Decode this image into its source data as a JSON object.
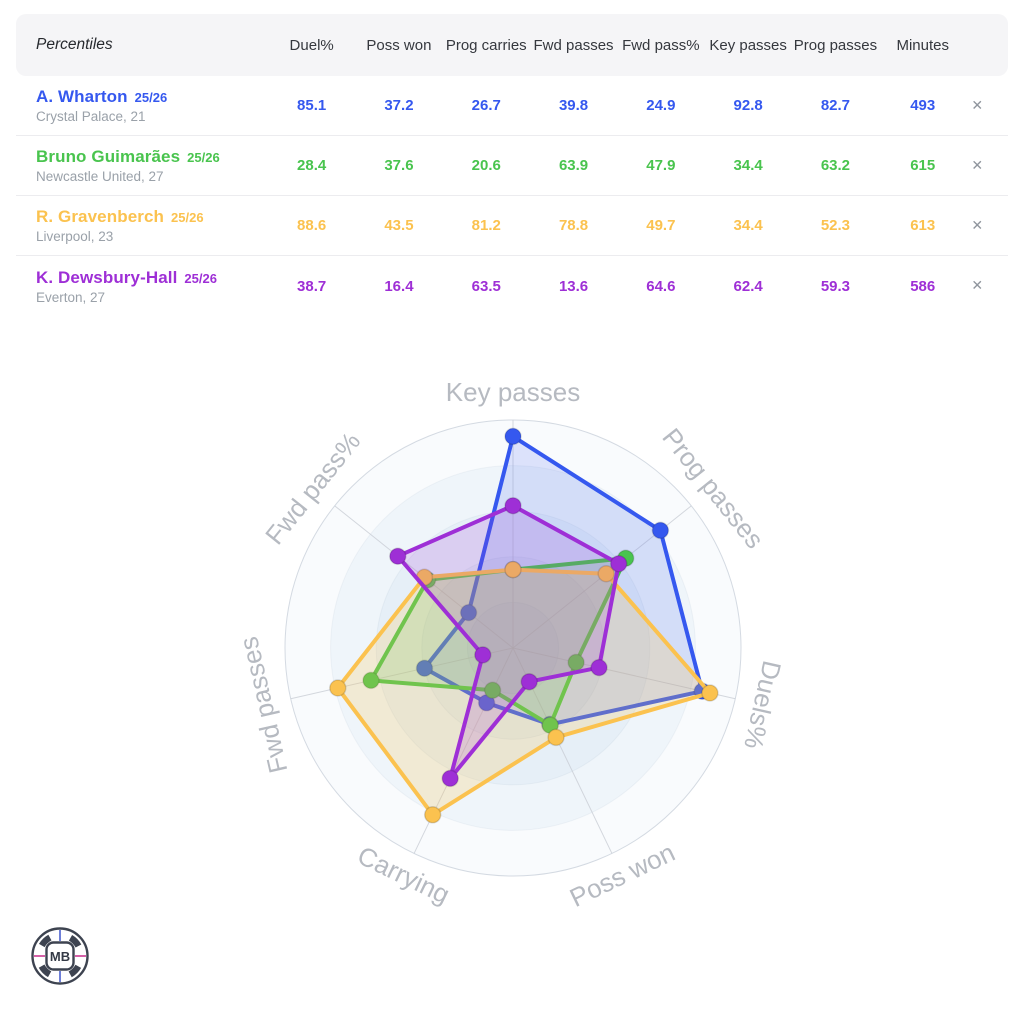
{
  "table": {
    "header": {
      "title": "Percentiles",
      "columns": [
        "Duel%",
        "Poss won",
        "Prog carries",
        "Fwd passes",
        "Fwd pass%",
        "Key passes",
        "Prog passes",
        "Minutes"
      ]
    },
    "remove_label": "✕",
    "rows": [
      {
        "name": "A. Wharton",
        "season": "25/26",
        "meta": "Crystal Palace, 21",
        "color": "#3558EF",
        "values": [
          "85.1",
          "37.2",
          "26.7",
          "39.8",
          "24.9",
          "92.8",
          "82.7",
          "493"
        ]
      },
      {
        "name": "Bruno Guimarães",
        "season": "25/26",
        "meta": "Newcastle United, 27",
        "color": "#49C44E",
        "values": [
          "28.4",
          "37.6",
          "20.6",
          "63.9",
          "47.9",
          "34.4",
          "63.2",
          "615"
        ]
      },
      {
        "name": "R. Gravenberch",
        "season": "25/26",
        "meta": "Liverpool, 23",
        "color": "#FBC24F",
        "values": [
          "88.6",
          "43.5",
          "81.2",
          "78.8",
          "49.7",
          "34.4",
          "52.3",
          "613"
        ]
      },
      {
        "name": "K. Dewsbury-Hall",
        "season": "25/26",
        "meta": "Everton, 27",
        "color": "#9E2FD6",
        "values": [
          "38.7",
          "16.4",
          "63.5",
          "13.6",
          "64.6",
          "62.4",
          "59.3",
          "586"
        ]
      }
    ]
  },
  "chart_data": {
    "type": "radar",
    "axes": [
      "Key passes",
      "Prog passes",
      "Duels%",
      "Poss won",
      "Carrying",
      "Fwd passes",
      "Fwd pass%"
    ],
    "scale_min": 0,
    "scale_max": 100,
    "rings": 5,
    "ring_fills": [
      "#f9fbfd",
      "#eff5fa",
      "#e6eff7",
      "#dee9f3",
      "#d7e3ef"
    ],
    "outer_ring_stroke": "#d4dae2",
    "spoke_color": "#c7cbd3",
    "label_color": "#b6bac1",
    "series": [
      {
        "name": "A. Wharton 25/26",
        "color": "#3558EF",
        "values": [
          92.8,
          82.7,
          85.1,
          37.2,
          26.7,
          39.8,
          24.9
        ]
      },
      {
        "name": "Bruno Guimarães 25/26",
        "color": "#49C44E",
        "values": [
          34.4,
          63.2,
          28.4,
          37.6,
          20.6,
          63.9,
          47.9
        ]
      },
      {
        "name": "R. Gravenberch 25/26",
        "color": "#FBC24F",
        "values": [
          34.4,
          52.3,
          88.6,
          43.5,
          81.2,
          78.8,
          49.7
        ]
      },
      {
        "name": "K. Dewsbury-Hall 25/26",
        "color": "#9E2FD6",
        "values": [
          62.4,
          59.3,
          38.7,
          16.4,
          63.5,
          13.6,
          64.6
        ]
      }
    ]
  },
  "logo": {
    "text": "MB"
  }
}
